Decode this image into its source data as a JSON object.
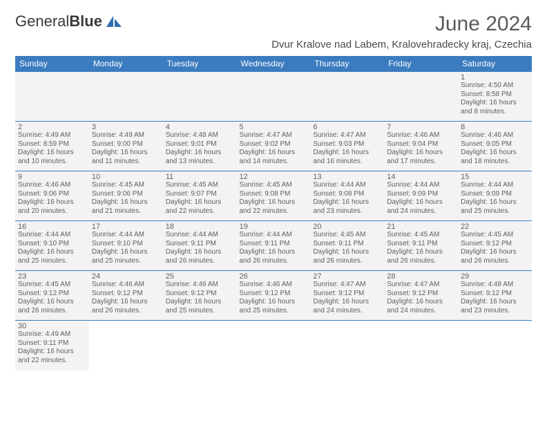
{
  "logo": {
    "brand_a": "General",
    "brand_b": "Blue"
  },
  "title": "June 2024",
  "location": "Dvur Kralove nad Labem, Kralovehradecky kraj, Czechia",
  "colors": {
    "header_bg": "#3b7bbf",
    "header_text": "#ffffff",
    "cell_bg": "#f3f3f3",
    "text": "#606060",
    "rule": "#3b7bbf"
  },
  "weekdays": [
    "Sunday",
    "Monday",
    "Tuesday",
    "Wednesday",
    "Thursday",
    "Friday",
    "Saturday"
  ],
  "weeks": [
    [
      null,
      null,
      null,
      null,
      null,
      null,
      {
        "n": "1",
        "sr": "4:50 AM",
        "ss": "8:58 PM",
        "dl": "16 hours and 8 minutes."
      }
    ],
    [
      {
        "n": "2",
        "sr": "4:49 AM",
        "ss": "8:59 PM",
        "dl": "16 hours and 10 minutes."
      },
      {
        "n": "3",
        "sr": "4:49 AM",
        "ss": "9:00 PM",
        "dl": "16 hours and 11 minutes."
      },
      {
        "n": "4",
        "sr": "4:48 AM",
        "ss": "9:01 PM",
        "dl": "16 hours and 13 minutes."
      },
      {
        "n": "5",
        "sr": "4:47 AM",
        "ss": "9:02 PM",
        "dl": "16 hours and 14 minutes."
      },
      {
        "n": "6",
        "sr": "4:47 AM",
        "ss": "9:03 PM",
        "dl": "16 hours and 16 minutes."
      },
      {
        "n": "7",
        "sr": "4:46 AM",
        "ss": "9:04 PM",
        "dl": "16 hours and 17 minutes."
      },
      {
        "n": "8",
        "sr": "4:46 AM",
        "ss": "9:05 PM",
        "dl": "16 hours and 18 minutes."
      }
    ],
    [
      {
        "n": "9",
        "sr": "4:46 AM",
        "ss": "9:06 PM",
        "dl": "16 hours and 20 minutes."
      },
      {
        "n": "10",
        "sr": "4:45 AM",
        "ss": "9:06 PM",
        "dl": "16 hours and 21 minutes."
      },
      {
        "n": "11",
        "sr": "4:45 AM",
        "ss": "9:07 PM",
        "dl": "16 hours and 22 minutes."
      },
      {
        "n": "12",
        "sr": "4:45 AM",
        "ss": "9:08 PM",
        "dl": "16 hours and 22 minutes."
      },
      {
        "n": "13",
        "sr": "4:44 AM",
        "ss": "9:08 PM",
        "dl": "16 hours and 23 minutes."
      },
      {
        "n": "14",
        "sr": "4:44 AM",
        "ss": "9:09 PM",
        "dl": "16 hours and 24 minutes."
      },
      {
        "n": "15",
        "sr": "4:44 AM",
        "ss": "9:09 PM",
        "dl": "16 hours and 25 minutes."
      }
    ],
    [
      {
        "n": "16",
        "sr": "4:44 AM",
        "ss": "9:10 PM",
        "dl": "16 hours and 25 minutes."
      },
      {
        "n": "17",
        "sr": "4:44 AM",
        "ss": "9:10 PM",
        "dl": "16 hours and 25 minutes."
      },
      {
        "n": "18",
        "sr": "4:44 AM",
        "ss": "9:11 PM",
        "dl": "16 hours and 26 minutes."
      },
      {
        "n": "19",
        "sr": "4:44 AM",
        "ss": "9:11 PM",
        "dl": "16 hours and 26 minutes."
      },
      {
        "n": "20",
        "sr": "4:45 AM",
        "ss": "9:11 PM",
        "dl": "16 hours and 26 minutes."
      },
      {
        "n": "21",
        "sr": "4:45 AM",
        "ss": "9:11 PM",
        "dl": "16 hours and 26 minutes."
      },
      {
        "n": "22",
        "sr": "4:45 AM",
        "ss": "9:12 PM",
        "dl": "16 hours and 26 minutes."
      }
    ],
    [
      {
        "n": "23",
        "sr": "4:45 AM",
        "ss": "9:12 PM",
        "dl": "16 hours and 26 minutes."
      },
      {
        "n": "24",
        "sr": "4:46 AM",
        "ss": "9:12 PM",
        "dl": "16 hours and 26 minutes."
      },
      {
        "n": "25",
        "sr": "4:46 AM",
        "ss": "9:12 PM",
        "dl": "16 hours and 25 minutes."
      },
      {
        "n": "26",
        "sr": "4:46 AM",
        "ss": "9:12 PM",
        "dl": "16 hours and 25 minutes."
      },
      {
        "n": "27",
        "sr": "4:47 AM",
        "ss": "9:12 PM",
        "dl": "16 hours and 24 minutes."
      },
      {
        "n": "28",
        "sr": "4:47 AM",
        "ss": "9:12 PM",
        "dl": "16 hours and 24 minutes."
      },
      {
        "n": "29",
        "sr": "4:48 AM",
        "ss": "9:12 PM",
        "dl": "16 hours and 23 minutes."
      }
    ],
    [
      {
        "n": "30",
        "sr": "4:49 AM",
        "ss": "9:11 PM",
        "dl": "16 hours and 22 minutes."
      },
      null,
      null,
      null,
      null,
      null,
      null
    ]
  ],
  "labels": {
    "sunrise": "Sunrise:",
    "sunset": "Sunset:",
    "daylight": "Daylight:"
  }
}
